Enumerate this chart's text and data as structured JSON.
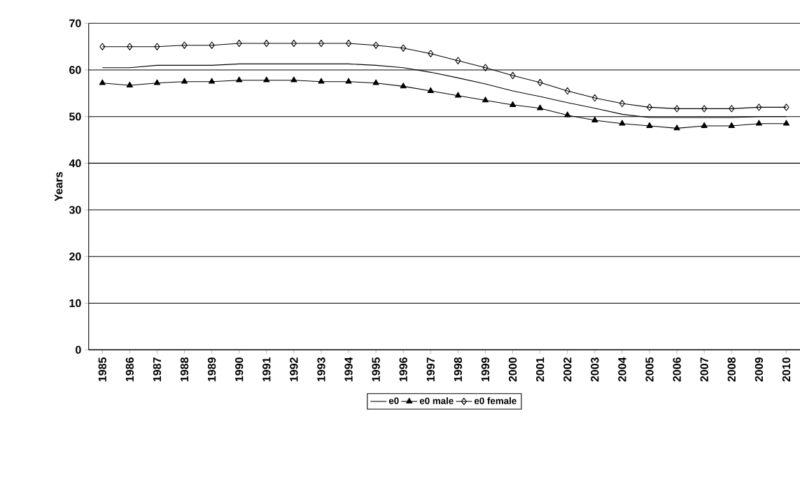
{
  "chart_data": {
    "type": "line",
    "ylabel": "Years",
    "categories": [
      "1985",
      "1986",
      "1987",
      "1988",
      "1989",
      "1990",
      "1991",
      "1992",
      "1993",
      "1994",
      "1995",
      "1996",
      "1997",
      "1998",
      "1999",
      "2000",
      "2001",
      "2002",
      "2003",
      "2004",
      "2005",
      "2006",
      "2007",
      "2008",
      "2009",
      "2010"
    ],
    "series": [
      {
        "name": "e0",
        "color": "#000000",
        "marker": "none",
        "values": [
          60.5,
          60.5,
          61,
          61,
          61,
          61.3,
          61.3,
          61.3,
          61.3,
          61.3,
          61,
          60.5,
          59.5,
          58.3,
          57,
          55.5,
          54.3,
          53,
          51.8,
          50.5,
          49.8,
          49.8,
          49.8,
          49.8,
          50,
          50
        ]
      },
      {
        "name": "e0 male",
        "color": "#000000",
        "marker": "triangle",
        "values": [
          57.2,
          56.7,
          57.2,
          57.5,
          57.5,
          57.8,
          57.8,
          57.8,
          57.5,
          57.5,
          57.2,
          56.5,
          55.5,
          54.5,
          53.5,
          52.5,
          51.8,
          50.3,
          49.2,
          48.5,
          48,
          47.5,
          48,
          48,
          48.5,
          48.5
        ]
      },
      {
        "name": "e0 female",
        "color": "#000000",
        "marker": "diamond",
        "values": [
          65,
          65,
          65,
          65.3,
          65.3,
          65.7,
          65.7,
          65.7,
          65.7,
          65.7,
          65.3,
          64.7,
          63.5,
          62,
          60.5,
          58.8,
          57.3,
          55.5,
          54,
          52.8,
          52,
          51.7,
          51.7,
          51.7,
          52,
          52
        ]
      }
    ],
    "ylim": [
      0,
      70
    ],
    "yticks": [
      0,
      10,
      20,
      30,
      40,
      50,
      60,
      70
    ],
    "grid": "y",
    "legend": "bottom",
    "line_style": "solid"
  }
}
